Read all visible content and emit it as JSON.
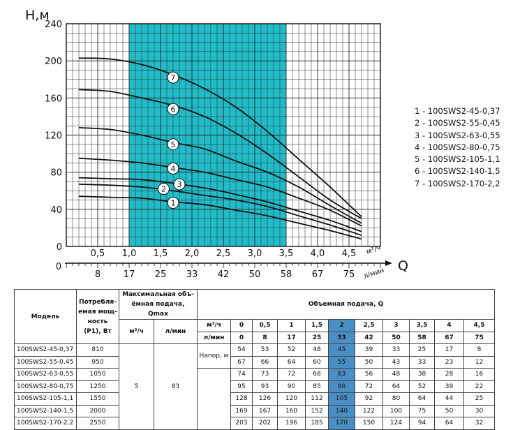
{
  "chart_data": {
    "type": "line",
    "ylabel": "Н,м",
    "xlabel": "Q",
    "unit_m3h": "м³/ч",
    "unit_lmin": "л/мин",
    "ylim": [
      0,
      240
    ],
    "xlim": [
      0,
      5
    ],
    "y_ticks": [
      "0",
      "40",
      "80",
      "120",
      "160",
      "200",
      "240"
    ],
    "x_ticks_m3h": [
      "0,5",
      "1,0",
      "1,5",
      "2,0",
      "2,5",
      "3,0",
      "3,5",
      "4,0",
      "4,5"
    ],
    "x_ticks_lmin": [
      "8",
      "17",
      "25",
      "33",
      "42",
      "50",
      "58",
      "67",
      "75"
    ],
    "zero_label": "0",
    "operating_range_m3h": [
      1.0,
      3.5
    ],
    "shade_color": "#22bcc9",
    "x": [
      0,
      0.5,
      1,
      1.5,
      2,
      2.5,
      3,
      3.5,
      4,
      4.5
    ],
    "series": [
      {
        "marker": "1",
        "name": "100SWS2-45-0,37",
        "values": [
          54,
          53,
          52,
          48,
          45,
          39,
          33,
          25,
          17,
          8
        ]
      },
      {
        "marker": "2",
        "name": "100SWS2-55-0,45",
        "values": [
          67,
          66,
          64,
          60,
          55,
          50,
          43,
          33,
          23,
          12
        ]
      },
      {
        "marker": "3",
        "name": "100SWS2-63-0,55",
        "values": [
          74,
          73,
          72,
          68,
          63,
          56,
          48,
          38,
          28,
          16
        ]
      },
      {
        "marker": "4",
        "name": "100SWS2-80-0,75",
        "values": [
          95,
          93,
          90,
          85,
          80,
          72,
          64,
          52,
          39,
          22
        ]
      },
      {
        "marker": "5",
        "name": "100SWS2-105-1,1",
        "values": [
          128,
          126,
          120,
          112,
          105,
          92,
          80,
          64,
          44,
          25
        ]
      },
      {
        "marker": "6",
        "name": "100SWS2-140-1,5",
        "values": [
          169,
          167,
          160,
          152,
          140,
          122,
          100,
          75,
          50,
          30
        ]
      },
      {
        "marker": "7",
        "name": "100SWS2-170-2,2",
        "values": [
          203,
          202,
          196,
          185,
          170,
          150,
          124,
          94,
          64,
          32
        ]
      }
    ]
  },
  "legend": [
    "1 - 100SWS2-45-0,37",
    "2 - 100SWS2-55-0,45",
    "3 - 100SWS2-63-0,55",
    "4 - 100SWS2-80-0,75",
    "5 - 100SWS2-105-1,1",
    "6 - 100SWS2-140-1,5",
    "7 - 100SWS2-170-2,2"
  ],
  "table": {
    "h_model": "Модель",
    "h_power": "Потребля-емая мощ-ность (P1), Вт",
    "h_maxflow": "Максимальная объ-ёмная подача, Qmax",
    "h_flow": "Объемная подача, Q",
    "h_m3h": "м³/ч",
    "h_lmin": "л/мин",
    "flow_m3h": [
      "0",
      "0,5",
      "1",
      "1,5",
      "2",
      "2,5",
      "3",
      "3,5",
      "4",
      "4,5"
    ],
    "flow_lmin": [
      "0",
      "8",
      "17",
      "25",
      "33",
      "42",
      "50",
      "58",
      "67",
      "75"
    ],
    "qmax_m3h": "5",
    "qmax_lmin": "83",
    "head_label": "Напор, м",
    "rows": [
      {
        "model": "100SWS2-45-0,37",
        "power": "810",
        "heads": [
          "54",
          "53",
          "52",
          "48",
          "45",
          "39",
          "33",
          "25",
          "17",
          "8"
        ]
      },
      {
        "model": "100SWS2-55-0,45",
        "power": "950",
        "heads": [
          "67",
          "66",
          "64",
          "60",
          "55",
          "50",
          "43",
          "33",
          "23",
          "12"
        ]
      },
      {
        "model": "100SWS2-63-0,55",
        "power": "1050",
        "heads": [
          "74",
          "73",
          "72",
          "68",
          "63",
          "56",
          "48",
          "38",
          "28",
          "16"
        ]
      },
      {
        "model": "100SWS2-80-0,75",
        "power": "1250",
        "heads": [
          "95",
          "93",
          "90",
          "85",
          "80",
          "72",
          "64",
          "52",
          "39",
          "22"
        ]
      },
      {
        "model": "100SWS2-105-1,1",
        "power": "1550",
        "heads": [
          "128",
          "126",
          "120",
          "112",
          "105",
          "92",
          "80",
          "64",
          "44",
          "25"
        ]
      },
      {
        "model": "100SWS2-140-1,5",
        "power": "2000",
        "heads": [
          "169",
          "167",
          "160",
          "152",
          "140",
          "122",
          "100",
          "75",
          "50",
          "30"
        ]
      },
      {
        "model": "100SWS2-170-2,2",
        "power": "2550",
        "heads": [
          "203",
          "202",
          "196",
          "185",
          "170",
          "150",
          "124",
          "94",
          "64",
          "32"
        ]
      }
    ],
    "highlight_col": 4,
    "highlight_color": "#4a8fc4"
  }
}
